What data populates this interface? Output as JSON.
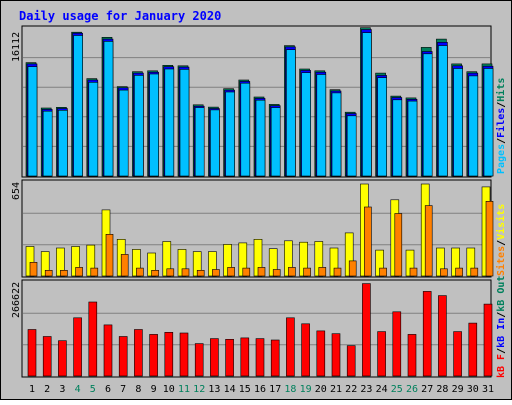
{
  "title": "Daily usage for January 2020",
  "colors": {
    "background": "#C0C0C0",
    "title": "#0000FF",
    "hits": "#00805C",
    "files": "#0000FF",
    "pages": "#00C0FF",
    "visits": "#FFFF00",
    "sites": "#FF8000",
    "kbin": "#FF0000",
    "kbout": "#00805C",
    "weekend": "#00805C",
    "weekday": "#000000"
  },
  "chart_data": [
    {
      "type": "bar",
      "id": "hits-files-pages",
      "ymax_label": "16112",
      "ylim": [
        0,
        16112
      ],
      "legend": {
        "pages": "Pages",
        "files": "Files",
        "hits": "Hits",
        "sep1": "/",
        "sep2": "/"
      },
      "series": [
        {
          "key": "hits",
          "values": [
            12350,
            7400,
            7480,
            15650,
            10600,
            15100,
            9730,
            11350,
            11450,
            12050,
            12000,
            7750,
            7500,
            9500,
            10450,
            8600,
            7800,
            14200,
            11650,
            11450,
            9400,
            6950,
            16150,
            11200,
            8700,
            8500,
            14000,
            14900,
            12200,
            11350,
            12200
          ]
        },
        {
          "key": "files",
          "values": [
            12200,
            7250,
            7350,
            15550,
            10450,
            14900,
            9600,
            11200,
            11300,
            11900,
            11850,
            7600,
            7350,
            9350,
            10300,
            8450,
            7650,
            14050,
            11500,
            11300,
            9250,
            6800,
            15950,
            10950,
            8550,
            8350,
            13550,
            14550,
            12000,
            11200,
            11950
          ]
        },
        {
          "key": "pages",
          "values": [
            11900,
            7050,
            7150,
            15300,
            10200,
            14650,
            9350,
            10950,
            11100,
            11650,
            11600,
            7450,
            7200,
            9150,
            10100,
            8250,
            7450,
            13750,
            11250,
            11050,
            9050,
            6550,
            15600,
            10700,
            8300,
            8150,
            13300,
            14200,
            11700,
            10900,
            11700
          ]
        }
      ]
    },
    {
      "type": "bar",
      "id": "visits-sites",
      "ymax_label": "654",
      "ylim": [
        0,
        654
      ],
      "legend": {
        "visits": "Visits",
        "sites": "Sites",
        "sep1": "/"
      },
      "series": [
        {
          "key": "visits",
          "values": [
            205,
            170,
            195,
            205,
            215,
            460,
            255,
            185,
            160,
            240,
            185,
            170,
            170,
            220,
            230,
            255,
            190,
            245,
            235,
            240,
            195,
            300,
            640,
            180,
            530,
            180,
            640,
            195,
            195,
            195,
            620
          ]
        },
        {
          "key": "sites",
          "values": [
            95,
            40,
            40,
            60,
            55,
            290,
            150,
            55,
            40,
            50,
            50,
            40,
            45,
            60,
            55,
            60,
            45,
            60,
            55,
            60,
            55,
            105,
            480,
            55,
            435,
            55,
            490,
            50,
            55,
            55,
            520
          ]
        }
      ]
    },
    {
      "type": "bar",
      "id": "kbin-kbout",
      "ymax_label": "266622",
      "ylim": [
        0,
        266622
      ],
      "legend": {
        "kbin": "kB In",
        "kbout": "kB Out",
        "kbf": "kB F",
        "sep1": "/",
        "sep2": "/"
      },
      "series": [
        {
          "key": "kbin",
          "values": [
            132000,
            112000,
            100000,
            165000,
            210000,
            145000,
            112000,
            132000,
            118000,
            124000,
            122000,
            92000,
            106000,
            104000,
            108000,
            106000,
            102000,
            165000,
            148000,
            128000,
            120000,
            86000,
            262000,
            126000,
            182000,
            118000,
            240000,
            228000,
            126000,
            150000,
            204000
          ]
        }
      ]
    }
  ],
  "days": [
    "1",
    "2",
    "3",
    "4",
    "5",
    "6",
    "7",
    "8",
    "9",
    "10",
    "11",
    "12",
    "13",
    "14",
    "15",
    "16",
    "17",
    "18",
    "19",
    "20",
    "21",
    "22",
    "23",
    "24",
    "25",
    "26",
    "27",
    "28",
    "29",
    "30",
    "31"
  ],
  "weekend_days": [
    4,
    5,
    11,
    12,
    18,
    19,
    25,
    26
  ]
}
